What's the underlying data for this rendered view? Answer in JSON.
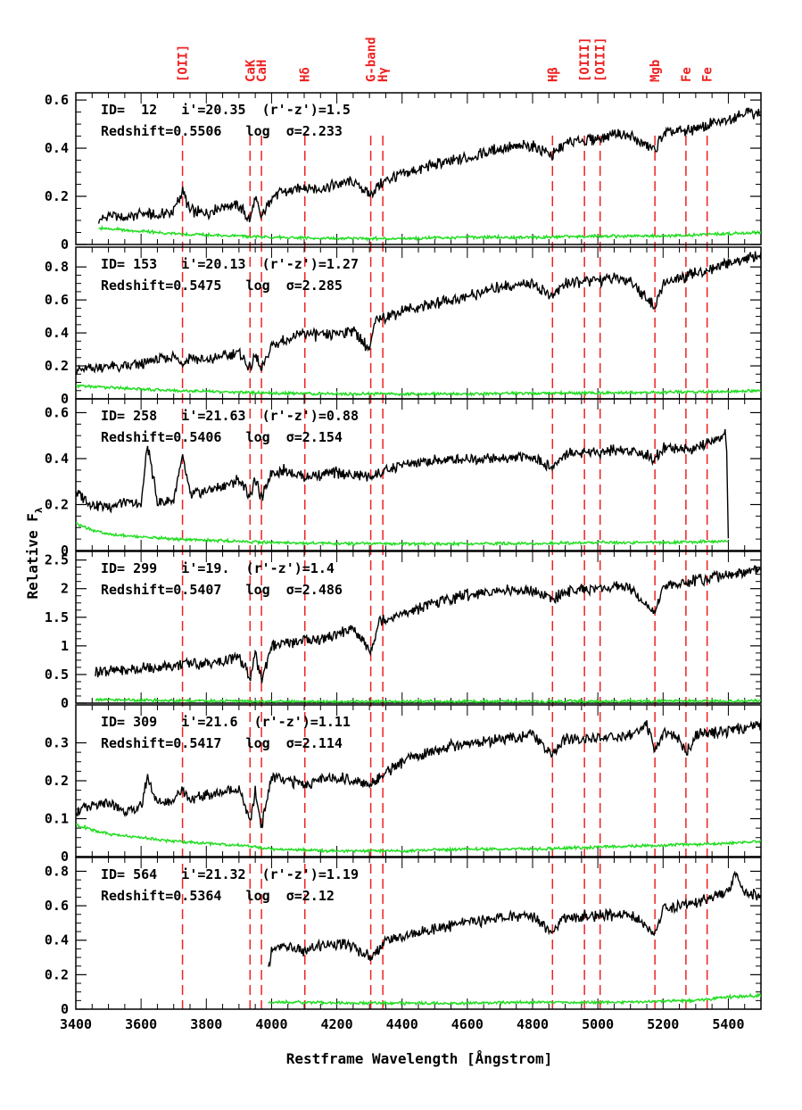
{
  "chart_data": {
    "type": "line",
    "title": "",
    "xlabel": "Restframe Wavelength [Ångstrom]",
    "ylabel": "Relative F",
    "ylabel_sub": "λ",
    "xlim": [
      3400,
      5500
    ],
    "x_ticks": [
      3400,
      3600,
      3800,
      4000,
      4200,
      4400,
      4600,
      4800,
      5000,
      5200,
      5400
    ],
    "x_tick_labels": [
      "3400",
      "3600",
      "3800",
      "4000",
      "4200",
      "4400",
      "4600",
      "4800",
      "5000",
      "5200",
      "5400"
    ],
    "colors": {
      "spectrum": "#000000",
      "error": "#22dd22",
      "lines": "#ee2222"
    },
    "spectral_lines": [
      {
        "label": "[OII]",
        "x": 3727
      },
      {
        "label": "CaK",
        "x": 3934
      },
      {
        "label": "CaH",
        "x": 3969
      },
      {
        "label": "Hδ",
        "x": 4102
      },
      {
        "label": "G-band",
        "x": 4304
      },
      {
        "label": "Hγ",
        "x": 4341
      },
      {
        "label": "Hβ",
        "x": 4861
      },
      {
        "label": "[OIII]",
        "x": 4959
      },
      {
        "label": "[OIII]",
        "x": 5007
      },
      {
        "label": "Mgb",
        "x": 5175
      },
      {
        "label": "Fe",
        "x": 5270
      },
      {
        "label": "Fe",
        "x": 5335
      }
    ],
    "panels": [
      {
        "id_text": "ID=  12   i'=20.35  (r'-z')=1.5",
        "redshift_text": "Redshift=0.5506   log  σ=2.233",
        "ylim": [
          0,
          0.63
        ],
        "y_ticks": [
          0,
          0.2,
          0.4,
          0.6
        ],
        "y_tick_labels": [
          "0",
          "0.2",
          "0.4",
          "0.6"
        ],
        "spectrum": {
          "x": [
            3470,
            3500,
            3550,
            3600,
            3650,
            3700,
            3727,
            3750,
            3800,
            3850,
            3900,
            3934,
            3950,
            3969,
            4000,
            4050,
            4100,
            4150,
            4200,
            4250,
            4300,
            4350,
            4400,
            4500,
            4600,
            4700,
            4800,
            4861,
            4900,
            4950,
            5000,
            5050,
            5100,
            5175,
            5200,
            5250,
            5300,
            5350,
            5400,
            5450,
            5500
          ],
          "y": [
            0.1,
            0.12,
            0.11,
            0.13,
            0.12,
            0.14,
            0.22,
            0.14,
            0.13,
            0.16,
            0.16,
            0.1,
            0.19,
            0.11,
            0.2,
            0.22,
            0.24,
            0.23,
            0.25,
            0.26,
            0.21,
            0.27,
            0.29,
            0.33,
            0.36,
            0.4,
            0.41,
            0.37,
            0.42,
            0.43,
            0.44,
            0.46,
            0.45,
            0.39,
            0.46,
            0.47,
            0.48,
            0.5,
            0.52,
            0.55,
            0.54
          ]
        },
        "error": {
          "x": [
            3470,
            3550,
            3600,
            3700,
            3800,
            3900,
            4000,
            4200,
            4400,
            4600,
            4800,
            5000,
            5200,
            5400,
            5500
          ],
          "y": [
            0.07,
            0.06,
            0.055,
            0.045,
            0.04,
            0.035,
            0.03,
            0.025,
            0.025,
            0.03,
            0.03,
            0.035,
            0.035,
            0.045,
            0.05
          ]
        }
      },
      {
        "id_text": "ID= 153   i'=20.13  (r'-z')=1.27",
        "redshift_text": "Redshift=0.5475   log  σ=2.285",
        "ylim": [
          0,
          0.92
        ],
        "y_ticks": [
          0,
          0.2,
          0.4,
          0.6,
          0.8
        ],
        "y_tick_labels": [
          "0",
          "0.2",
          "0.4",
          "0.6",
          "0.8"
        ],
        "spectrum": {
          "x": [
            3400,
            3450,
            3500,
            3550,
            3600,
            3650,
            3700,
            3727,
            3750,
            3800,
            3850,
            3900,
            3934,
            3950,
            3969,
            4000,
            4050,
            4100,
            4150,
            4200,
            4250,
            4300,
            4320,
            4350,
            4400,
            4500,
            4600,
            4700,
            4800,
            4861,
            4900,
            4950,
            5000,
            5050,
            5100,
            5175,
            5200,
            5250,
            5300,
            5350,
            5400,
            5450,
            5500
          ],
          "y": [
            0.17,
            0.18,
            0.2,
            0.19,
            0.21,
            0.24,
            0.26,
            0.22,
            0.25,
            0.23,
            0.26,
            0.28,
            0.18,
            0.27,
            0.17,
            0.32,
            0.36,
            0.4,
            0.38,
            0.4,
            0.42,
            0.3,
            0.48,
            0.5,
            0.53,
            0.58,
            0.62,
            0.68,
            0.7,
            0.62,
            0.7,
            0.71,
            0.72,
            0.73,
            0.72,
            0.55,
            0.7,
            0.73,
            0.76,
            0.79,
            0.82,
            0.85,
            0.87
          ]
        },
        "error": {
          "x": [
            3400,
            3500,
            3600,
            3700,
            3800,
            3900,
            4000,
            4200,
            4400,
            4600,
            4800,
            5000,
            5200,
            5400,
            5500
          ],
          "y": [
            0.08,
            0.07,
            0.06,
            0.05,
            0.045,
            0.04,
            0.035,
            0.03,
            0.03,
            0.03,
            0.035,
            0.035,
            0.04,
            0.045,
            0.05
          ]
        }
      },
      {
        "id_text": "ID= 258   i'=21.63  (r'-z')=0.88",
        "redshift_text": "Redshift=0.5406   log  σ=2.154",
        "ylim": [
          0,
          0.66
        ],
        "y_ticks": [
          0,
          0.2,
          0.4,
          0.6
        ],
        "y_tick_labels": [
          "0",
          "0.2",
          "0.4",
          "0.6"
        ],
        "spectrum": {
          "x": [
            3400,
            3450,
            3500,
            3550,
            3600,
            3620,
            3650,
            3700,
            3727,
            3750,
            3800,
            3850,
            3900,
            3934,
            3950,
            3969,
            4000,
            4050,
            4100,
            4200,
            4300,
            4400,
            4500,
            4600,
            4700,
            4800,
            4861,
            4900,
            5000,
            5100,
            5175,
            5200,
            5300,
            5390,
            5395,
            5400
          ],
          "y": [
            0.25,
            0.2,
            0.19,
            0.21,
            0.2,
            0.46,
            0.21,
            0.22,
            0.41,
            0.24,
            0.26,
            0.28,
            0.31,
            0.24,
            0.31,
            0.22,
            0.34,
            0.35,
            0.32,
            0.34,
            0.32,
            0.37,
            0.39,
            0.4,
            0.4,
            0.41,
            0.36,
            0.42,
            0.43,
            0.44,
            0.4,
            0.45,
            0.44,
            0.5,
            0.45,
            0.05
          ]
        },
        "error": {
          "x": [
            3400,
            3450,
            3500,
            3600,
            3700,
            3800,
            3900,
            4000,
            4200,
            4400,
            4600,
            4800,
            5000,
            5200,
            5380,
            5400
          ],
          "y": [
            0.12,
            0.09,
            0.07,
            0.06,
            0.05,
            0.045,
            0.04,
            0.035,
            0.03,
            0.03,
            0.03,
            0.03,
            0.035,
            0.035,
            0.04,
            0.04
          ]
        }
      },
      {
        "id_text": "ID= 299   i'=19.  (r'-z')=1.4",
        "redshift_text": "Redshift=0.5407   log  σ=2.486",
        "ylim": [
          0,
          2.65
        ],
        "y_ticks": [
          0,
          0.5,
          1,
          1.5,
          2,
          2.5
        ],
        "y_tick_labels": [
          "0",
          "0.5",
          "1",
          "1.5",
          "2",
          "2.5"
        ],
        "spectrum": {
          "x": [
            3460,
            3500,
            3550,
            3600,
            3650,
            3700,
            3750,
            3800,
            3850,
            3900,
            3934,
            3950,
            3969,
            4000,
            4050,
            4100,
            4150,
            4200,
            4250,
            4304,
            4330,
            4400,
            4500,
            4600,
            4700,
            4800,
            4861,
            4900,
            5000,
            5100,
            5175,
            5200,
            5300,
            5400,
            5500
          ],
          "y": [
            0.55,
            0.57,
            0.58,
            0.6,
            0.62,
            0.66,
            0.7,
            0.68,
            0.72,
            0.8,
            0.45,
            0.85,
            0.4,
            1.0,
            1.05,
            1.1,
            1.12,
            1.2,
            1.3,
            0.9,
            1.45,
            1.55,
            1.75,
            1.9,
            1.98,
            1.95,
            1.8,
            1.95,
            2.0,
            2.02,
            1.55,
            2.05,
            2.15,
            2.25,
            2.32
          ]
        },
        "error": {
          "x": [
            3460,
            3600,
            3800,
            4000,
            4200,
            4400,
            4600,
            4800,
            5000,
            5200,
            5400,
            5500
          ],
          "y": [
            0.06,
            0.05,
            0.04,
            0.03,
            0.03,
            0.03,
            0.03,
            0.03,
            0.03,
            0.035,
            0.04,
            0.04
          ]
        }
      },
      {
        "id_text": "ID= 309   i'=21.6  (r'-z')=1.11",
        "redshift_text": "Redshift=0.5417   log  σ=2.114",
        "ylim": [
          0,
          0.4
        ],
        "y_ticks": [
          0,
          0.1,
          0.2,
          0.3
        ],
        "y_tick_labels": [
          "0",
          "0.1",
          "0.2",
          "0.3"
        ],
        "spectrum": {
          "x": [
            3400,
            3450,
            3500,
            3550,
            3600,
            3620,
            3650,
            3700,
            3727,
            3750,
            3800,
            3850,
            3900,
            3934,
            3950,
            3969,
            4000,
            4050,
            4100,
            4200,
            4300,
            4400,
            4500,
            4600,
            4700,
            4800,
            4861,
            4900,
            5000,
            5100,
            5150,
            5175,
            5200,
            5250,
            5270,
            5300,
            5400,
            5500
          ],
          "y": [
            0.12,
            0.13,
            0.14,
            0.12,
            0.13,
            0.21,
            0.14,
            0.15,
            0.18,
            0.15,
            0.16,
            0.17,
            0.18,
            0.09,
            0.17,
            0.08,
            0.21,
            0.2,
            0.19,
            0.21,
            0.19,
            0.25,
            0.28,
            0.3,
            0.31,
            0.32,
            0.27,
            0.31,
            0.31,
            0.32,
            0.35,
            0.27,
            0.33,
            0.31,
            0.27,
            0.32,
            0.33,
            0.35
          ]
        },
        "error": {
          "x": [
            3400,
            3450,
            3500,
            3600,
            3700,
            3800,
            3900,
            4000,
            4200,
            4400,
            4600,
            4800,
            5000,
            5200,
            5400,
            5500
          ],
          "y": [
            0.085,
            0.07,
            0.06,
            0.05,
            0.04,
            0.035,
            0.03,
            0.02,
            0.015,
            0.015,
            0.02,
            0.02,
            0.025,
            0.03,
            0.035,
            0.04
          ]
        }
      },
      {
        "id_text": "ID= 564   i'=21.32  (r'-z')=1.19",
        "redshift_text": "Redshift=0.5364   log  σ=2.12",
        "ylim": [
          0,
          0.88
        ],
        "y_ticks": [
          0,
          0.2,
          0.4,
          0.6,
          0.8
        ],
        "y_tick_labels": [
          "0",
          "0.2",
          "0.4",
          "0.6",
          "0.8"
        ],
        "spectrum": {
          "x": [
            3990,
            4000,
            4050,
            4100,
            4150,
            4200,
            4250,
            4304,
            4350,
            4400,
            4500,
            4600,
            4700,
            4800,
            4861,
            4900,
            5000,
            5100,
            5175,
            5200,
            5300,
            5400,
            5420,
            5450,
            5500
          ],
          "y": [
            0.22,
            0.35,
            0.36,
            0.33,
            0.37,
            0.38,
            0.36,
            0.3,
            0.4,
            0.42,
            0.47,
            0.5,
            0.53,
            0.54,
            0.45,
            0.53,
            0.54,
            0.55,
            0.44,
            0.58,
            0.62,
            0.68,
            0.8,
            0.68,
            0.65
          ]
        },
        "error": {
          "x": [
            3990,
            4100,
            4200,
            4400,
            4600,
            4800,
            5000,
            5200,
            5300,
            5400,
            5500
          ],
          "y": [
            0.04,
            0.04,
            0.035,
            0.035,
            0.035,
            0.04,
            0.04,
            0.045,
            0.05,
            0.07,
            0.08
          ]
        }
      }
    ]
  }
}
